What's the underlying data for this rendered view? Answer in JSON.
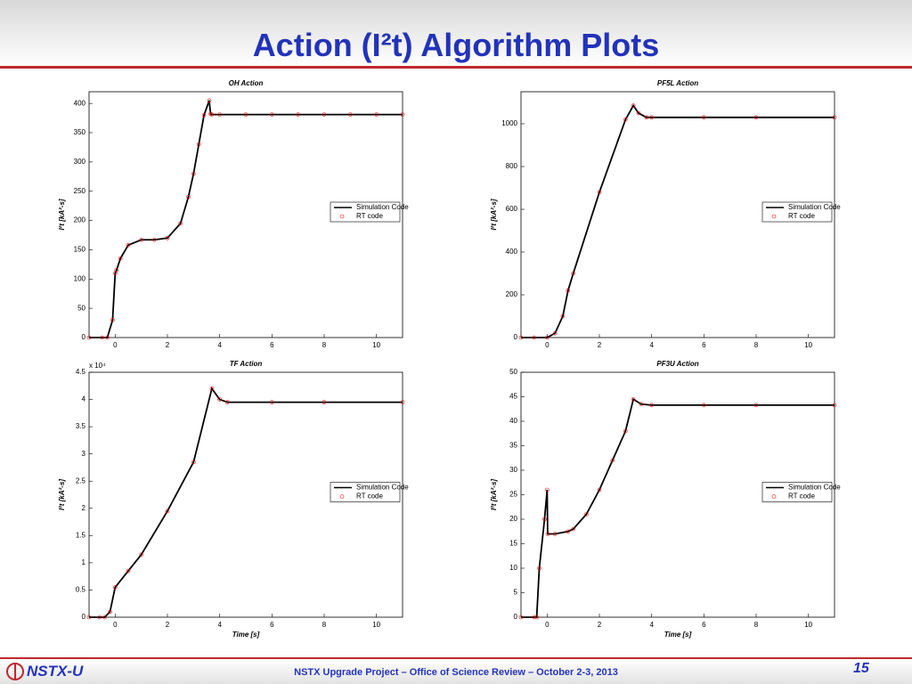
{
  "header": {
    "title": "Action (I²t) Algorithm Plots"
  },
  "footer": {
    "logo": "NSTX-U",
    "text": "NSTX Upgrade Project – Office of Science Review – October 2-3, 2013",
    "page": "15"
  },
  "chart_data": [
    {
      "type": "line",
      "title": "OH Action",
      "ylabel": "I²t [kA²-s]",
      "x": [
        -1,
        -0.5,
        -0.3,
        -0.1,
        0,
        0.05,
        0.2,
        0.5,
        1,
        1.5,
        2,
        2.5,
        2.8,
        3,
        3.2,
        3.4,
        3.6,
        3.65,
        3.7,
        4,
        5,
        6,
        7,
        8,
        9,
        10,
        11
      ],
      "series": [
        {
          "name": "Simulation Code",
          "color": "#000000",
          "values": [
            0,
            0,
            0,
            30,
            110,
            115,
            135,
            158,
            167,
            167,
            170,
            195,
            240,
            280,
            330,
            380,
            405,
            382,
            381,
            381,
            381,
            381,
            381,
            381,
            381,
            381,
            381
          ]
        },
        {
          "name": "RT code",
          "color": "#ff0000",
          "marker": "circle",
          "values": [
            0,
            0,
            0,
            30,
            110,
            115,
            135,
            158,
            167,
            167,
            170,
            195,
            240,
            280,
            330,
            380,
            405,
            382,
            381,
            381,
            381,
            381,
            381,
            381,
            381,
            381,
            381
          ]
        }
      ],
      "xlim": [
        -1,
        11
      ],
      "xticks": [
        0,
        2,
        4,
        6,
        8,
        10
      ],
      "ylim": [
        0,
        420
      ],
      "yticks": [
        0,
        50,
        100,
        150,
        200,
        250,
        300,
        350,
        400
      ],
      "legend": "right"
    },
    {
      "type": "line",
      "title": "PF5L Action",
      "ylabel": "I²t [kA²-s]",
      "x": [
        -1,
        -0.5,
        0,
        0.3,
        0.6,
        0.8,
        1,
        2,
        3,
        3.3,
        3.5,
        3.8,
        4,
        6,
        8,
        11
      ],
      "series": [
        {
          "name": "Simulation Code",
          "color": "#000000",
          "values": [
            0,
            0,
            0,
            20,
            100,
            220,
            300,
            680,
            1020,
            1085,
            1050,
            1030,
            1030,
            1030,
            1030,
            1030
          ]
        },
        {
          "name": "RT code",
          "color": "#ff0000",
          "marker": "circle",
          "values": [
            0,
            0,
            0,
            20,
            100,
            220,
            300,
            680,
            1020,
            1085,
            1050,
            1030,
            1030,
            1030,
            1030,
            1030
          ]
        }
      ],
      "xlim": [
        -1,
        11
      ],
      "xticks": [
        0,
        2,
        4,
        6,
        8,
        10
      ],
      "ylim": [
        0,
        1150
      ],
      "yticks": [
        0,
        200,
        400,
        600,
        800,
        1000
      ],
      "legend": "right"
    },
    {
      "type": "line",
      "title": "TF Action",
      "ylabel": "I²t [kA²-s]",
      "xlabel": "Time [s]",
      "y_multiplier": "x 10⁴",
      "x": [
        -1,
        -0.6,
        -0.4,
        -0.2,
        0,
        0.5,
        1,
        2,
        3,
        3.7,
        4,
        4.3,
        6,
        8,
        11
      ],
      "series": [
        {
          "name": "Simulation Code",
          "color": "#000000",
          "values": [
            0,
            0,
            0,
            0.1,
            0.55,
            0.85,
            1.15,
            1.95,
            2.85,
            4.2,
            4.0,
            3.95,
            3.95,
            3.95,
            3.95
          ]
        },
        {
          "name": "RT code",
          "color": "#ff0000",
          "marker": "circle",
          "values": [
            0,
            0,
            0,
            0.1,
            0.55,
            0.85,
            1.15,
            1.95,
            2.85,
            4.2,
            4.0,
            3.95,
            3.95,
            3.95,
            3.95
          ]
        }
      ],
      "xlim": [
        -1,
        11
      ],
      "xticks": [
        0,
        2,
        4,
        6,
        8,
        10
      ],
      "ylim": [
        0,
        4.5
      ],
      "yticks": [
        0,
        0.5,
        1,
        1.5,
        2,
        2.5,
        3,
        3.5,
        4,
        4.5
      ],
      "legend": "right"
    },
    {
      "type": "line",
      "title": "PF3U Action",
      "ylabel": "I²t [kA²-s]",
      "xlabel": "Time [s]",
      "x": [
        -1,
        -0.5,
        -0.4,
        -0.3,
        -0.1,
        0,
        0.02,
        0.3,
        0.8,
        1,
        1.5,
        2,
        2.5,
        3,
        3.3,
        3.6,
        4,
        6,
        8,
        11
      ],
      "series": [
        {
          "name": "Simulation Code",
          "color": "#000000",
          "values": [
            0,
            0,
            0,
            10,
            20,
            26,
            17,
            17,
            17.5,
            18,
            21,
            26,
            32,
            38,
            44.5,
            43.5,
            43.3,
            43.3,
            43.3,
            43.3
          ]
        },
        {
          "name": "RT code",
          "color": "#ff0000",
          "marker": "circle",
          "values": [
            0,
            0,
            0,
            10,
            20,
            26,
            17,
            17,
            17.5,
            18,
            21,
            26,
            32,
            38,
            44.5,
            43.5,
            43.3,
            43.3,
            43.3,
            43.3
          ]
        }
      ],
      "xlim": [
        -1,
        11
      ],
      "xticks": [
        0,
        2,
        4,
        6,
        8,
        10
      ],
      "ylim": [
        0,
        50
      ],
      "yticks": [
        0,
        5,
        10,
        15,
        20,
        25,
        30,
        35,
        40,
        45,
        50
      ],
      "legend": "right"
    }
  ]
}
